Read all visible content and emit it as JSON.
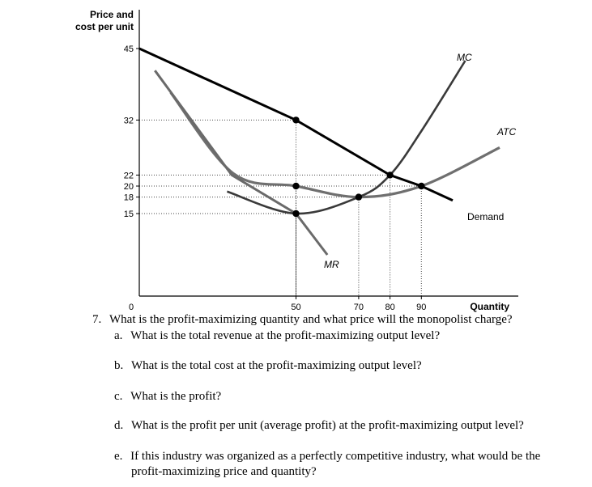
{
  "chart_data": {
    "type": "line",
    "ylabel_lines": [
      "Price and",
      "cost per unit"
    ],
    "xlabel": "Quantity",
    "origin_label": "0",
    "y_ticks": [
      45,
      32,
      22,
      20,
      18,
      15
    ],
    "x_ticks": [
      50,
      70,
      80,
      90
    ],
    "xlim": [
      0,
      104
    ],
    "ylim": [
      0,
      45
    ],
    "curves": {
      "demand": {
        "label": "Demand",
        "points": [
          [
            0,
            45
          ],
          [
            50,
            32
          ],
          [
            80,
            22
          ],
          [
            90,
            20
          ],
          [
            100,
            17.4
          ]
        ]
      },
      "mr": {
        "label": "MR",
        "points": [
          [
            5,
            41
          ],
          [
            29.5,
            22
          ],
          [
            50,
            15
          ],
          [
            60,
            7.5
          ]
        ]
      },
      "mc": {
        "label": "MC",
        "points": [
          [
            28,
            19
          ],
          [
            50,
            15
          ],
          [
            70,
            18
          ],
          [
            80,
            22
          ],
          [
            90,
            30
          ],
          [
            104,
            42.8
          ]
        ]
      },
      "atc": {
        "label": "ATC",
        "points": [
          [
            10,
            37
          ],
          [
            30,
            22.3
          ],
          [
            50,
            20
          ],
          [
            70,
            18
          ],
          [
            90,
            20
          ],
          [
            115,
            27
          ]
        ]
      }
    },
    "marked_points": [
      [
        50,
        32
      ],
      [
        50,
        20
      ],
      [
        50,
        15
      ],
      [
        70,
        18
      ],
      [
        80,
        22
      ],
      [
        90,
        20
      ]
    ],
    "guide_lines": [
      {
        "x": 50,
        "y": 32
      },
      {
        "x": 50,
        "y": 20
      },
      {
        "x": 50,
        "y": 15
      },
      {
        "x": 70,
        "y": 18
      },
      {
        "x": 80,
        "y": 22
      },
      {
        "x": 90,
        "y": 20
      }
    ]
  },
  "questions": {
    "q7": {
      "num": "7.",
      "text": "What is the profit-maximizing quantity and what price will the monopolist charge?"
    },
    "a": {
      "label": "a.",
      "text": "What is the total revenue at the profit-maximizing output level?"
    },
    "b": {
      "label": "b.",
      "text": "What is the total cost at the profit-maximizing output level?"
    },
    "c": {
      "label": "c.",
      "text": "What is the profit?"
    },
    "d": {
      "label": "d.",
      "text": "What is the profit per unit (average profit) at the profit-maximizing output level?"
    },
    "e": {
      "label": "e.",
      "text_line1": "If this industry was organized as a perfectly competitive industry, what would be the",
      "text_line2": "profit-maximizing price and quantity?"
    }
  }
}
